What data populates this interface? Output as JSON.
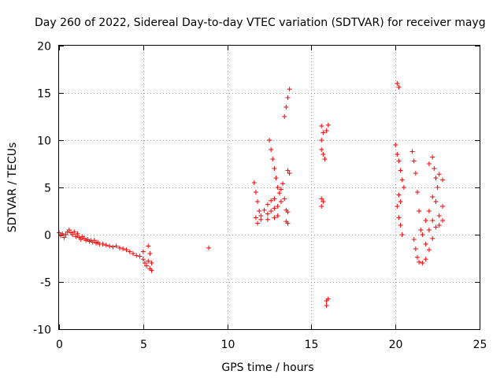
{
  "chart_data": {
    "type": "scatter",
    "title": "Day 260 of 2022, Sidereal Day-to-day VTEC variation (SDTVAR) for receiver mayg",
    "xlabel": "GPS time / hours",
    "ylabel": "SDTVAR / TECUs",
    "xlim": [
      0,
      25
    ],
    "ylim": [
      -10,
      20
    ],
    "xticks": [
      0,
      5,
      10,
      15,
      20,
      25
    ],
    "yticks": [
      -10,
      -5,
      0,
      5,
      10,
      15,
      20
    ],
    "xtick_labels": [
      "0",
      "5",
      "10",
      "15",
      "20",
      "25"
    ],
    "ytick_labels": [
      "-10",
      "-5",
      "0",
      "5",
      "10",
      "15",
      "20"
    ],
    "grid": true,
    "marker": "+",
    "color": "#ff0000",
    "series": [
      {
        "name": "SDTVAR",
        "points": [
          [
            0.0,
            0.2
          ],
          [
            0.1,
            -0.1
          ],
          [
            0.2,
            0.1
          ],
          [
            0.3,
            -0.3
          ],
          [
            0.4,
            0.0
          ],
          [
            0.5,
            0.3
          ],
          [
            0.6,
            0.5
          ],
          [
            0.7,
            0.2
          ],
          [
            0.8,
            0.0
          ],
          [
            0.9,
            0.3
          ],
          [
            1.0,
            -0.2
          ],
          [
            1.1,
            0.1
          ],
          [
            1.2,
            -0.3
          ],
          [
            1.3,
            -0.5
          ],
          [
            1.4,
            -0.2
          ],
          [
            1.5,
            -0.4
          ],
          [
            1.6,
            -0.6
          ],
          [
            1.7,
            -0.5
          ],
          [
            1.8,
            -0.7
          ],
          [
            1.9,
            -0.6
          ],
          [
            2.0,
            -0.8
          ],
          [
            2.1,
            -0.6
          ],
          [
            2.2,
            -0.9
          ],
          [
            2.3,
            -0.8
          ],
          [
            2.4,
            -1.0
          ],
          [
            2.6,
            -1.0
          ],
          [
            2.8,
            -1.1
          ],
          [
            3.0,
            -1.2
          ],
          [
            3.2,
            -1.3
          ],
          [
            3.4,
            -1.2
          ],
          [
            3.6,
            -1.4
          ],
          [
            3.8,
            -1.5
          ],
          [
            4.0,
            -1.6
          ],
          [
            4.2,
            -1.8
          ],
          [
            4.4,
            -2.0
          ],
          [
            4.6,
            -2.2
          ],
          [
            4.8,
            -2.3
          ],
          [
            5.0,
            -2.6
          ],
          [
            5.0,
            -1.8
          ],
          [
            5.1,
            -3.0
          ],
          [
            5.2,
            -3.3
          ],
          [
            5.3,
            -2.8
          ],
          [
            5.4,
            -3.6
          ],
          [
            5.5,
            -3.8
          ],
          [
            5.3,
            -1.2
          ],
          [
            5.4,
            -2.0
          ],
          [
            5.5,
            -3.0
          ],
          [
            8.9,
            -1.4
          ],
          [
            11.6,
            5.5
          ],
          [
            11.7,
            4.5
          ],
          [
            11.8,
            3.5
          ],
          [
            11.9,
            2.5
          ],
          [
            12.0,
            1.6
          ],
          [
            11.7,
            1.8
          ],
          [
            11.8,
            1.2
          ],
          [
            12.0,
            2.0
          ],
          [
            12.2,
            2.6
          ],
          [
            12.4,
            3.2
          ],
          [
            12.6,
            3.6
          ],
          [
            12.8,
            3.8
          ],
          [
            12.4,
            2.2
          ],
          [
            12.6,
            2.5
          ],
          [
            12.8,
            2.8
          ],
          [
            13.0,
            3.0
          ],
          [
            13.2,
            3.5
          ],
          [
            13.4,
            3.8
          ],
          [
            12.4,
            1.6
          ],
          [
            12.8,
            1.8
          ],
          [
            13.0,
            2.0
          ],
          [
            12.5,
            10.0
          ],
          [
            12.6,
            9.0
          ],
          [
            12.7,
            8.0
          ],
          [
            12.8,
            7.0
          ],
          [
            12.9,
            6.0
          ],
          [
            13.0,
            5.0
          ],
          [
            13.1,
            4.4
          ],
          [
            13.2,
            4.8
          ],
          [
            13.3,
            5.4
          ],
          [
            13.5,
            2.6
          ],
          [
            13.6,
            2.4
          ],
          [
            13.5,
            1.4
          ],
          [
            13.6,
            1.2
          ],
          [
            13.4,
            12.5
          ],
          [
            13.5,
            13.5
          ],
          [
            13.6,
            14.5
          ],
          [
            13.7,
            15.4
          ],
          [
            13.6,
            6.8
          ],
          [
            13.7,
            6.5
          ],
          [
            15.6,
            11.5
          ],
          [
            15.7,
            10.8
          ],
          [
            15.6,
            10.0
          ],
          [
            15.6,
            9.0
          ],
          [
            15.7,
            8.5
          ],
          [
            15.8,
            8.0
          ],
          [
            15.9,
            11.0
          ],
          [
            16.0,
            11.6
          ],
          [
            15.6,
            3.8
          ],
          [
            15.7,
            3.5
          ],
          [
            15.6,
            3.0
          ],
          [
            15.9,
            -7.0
          ],
          [
            16.0,
            -6.8
          ],
          [
            15.9,
            -7.5
          ],
          [
            20.1,
            16.0
          ],
          [
            20.2,
            15.6
          ],
          [
            20.0,
            9.5
          ],
          [
            20.1,
            8.5
          ],
          [
            20.2,
            7.8
          ],
          [
            20.3,
            6.8
          ],
          [
            20.4,
            5.8
          ],
          [
            20.2,
            4.2
          ],
          [
            20.3,
            3.5
          ],
          [
            20.1,
            3.0
          ],
          [
            20.2,
            1.8
          ],
          [
            20.3,
            1.0
          ],
          [
            20.4,
            0.0
          ],
          [
            20.5,
            5.0
          ],
          [
            21.0,
            8.8
          ],
          [
            21.1,
            7.8
          ],
          [
            21.2,
            6.5
          ],
          [
            21.3,
            4.5
          ],
          [
            21.4,
            2.5
          ],
          [
            21.5,
            0.5
          ],
          [
            21.1,
            -0.5
          ],
          [
            21.2,
            -1.5
          ],
          [
            21.3,
            -2.4
          ],
          [
            21.4,
            -2.9
          ],
          [
            21.6,
            -3.0
          ],
          [
            21.8,
            -2.6
          ],
          [
            22.0,
            -1.6
          ],
          [
            22.2,
            -0.4
          ],
          [
            22.4,
            0.8
          ],
          [
            22.6,
            2.0
          ],
          [
            22.8,
            3.0
          ],
          [
            21.8,
            1.5
          ],
          [
            22.0,
            2.5
          ],
          [
            22.2,
            4.0
          ],
          [
            22.4,
            6.0
          ],
          [
            22.6,
            6.4
          ],
          [
            22.8,
            5.8
          ],
          [
            22.0,
            7.5
          ],
          [
            22.2,
            8.2
          ],
          [
            22.3,
            7.0
          ],
          [
            22.5,
            5.0
          ],
          [
            21.6,
            0.0
          ],
          [
            21.8,
            -1.0
          ],
          [
            22.0,
            0.5
          ],
          [
            22.2,
            1.5
          ],
          [
            22.4,
            3.5
          ],
          [
            22.6,
            1.0
          ],
          [
            22.8,
            1.5
          ]
        ]
      }
    ]
  }
}
